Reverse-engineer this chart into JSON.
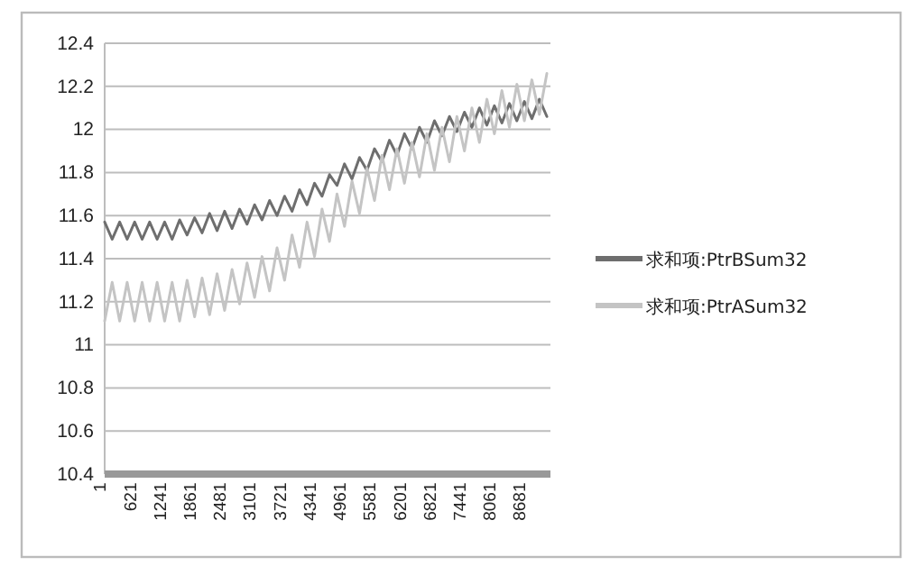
{
  "chart_data": {
    "type": "line",
    "x": [
      1,
      156,
      311,
      466,
      621,
      776,
      931,
      1086,
      1241,
      1396,
      1551,
      1706,
      1861,
      2016,
      2171,
      2326,
      2481,
      2636,
      2791,
      2946,
      3101,
      3256,
      3411,
      3566,
      3721,
      3876,
      4031,
      4186,
      4341,
      4496,
      4651,
      4806,
      4961,
      5116,
      5271,
      5426,
      5581,
      5736,
      5891,
      6046,
      6201,
      6356,
      6511,
      6666,
      6821,
      6976,
      7131,
      7286,
      7441,
      7596,
      7751,
      7906,
      8061,
      8216,
      8371,
      8526,
      8681,
      8836,
      8991,
      9146
    ],
    "series": [
      {
        "name": "求和项:PtrBSum32",
        "color": "#6e6e6e",
        "values": [
          11.57,
          11.49,
          11.57,
          11.49,
          11.57,
          11.49,
          11.57,
          11.49,
          11.57,
          11.49,
          11.58,
          11.51,
          11.59,
          11.52,
          11.61,
          11.53,
          11.62,
          11.54,
          11.63,
          11.56,
          11.65,
          11.58,
          11.67,
          11.6,
          11.69,
          11.62,
          11.72,
          11.65,
          11.75,
          11.69,
          11.79,
          11.74,
          11.84,
          11.77,
          11.87,
          11.81,
          11.91,
          11.85,
          11.95,
          11.88,
          11.98,
          11.91,
          12.01,
          11.94,
          12.04,
          11.97,
          12.06,
          11.99,
          12.08,
          12.01,
          12.1,
          12.02,
          12.11,
          12.03,
          12.12,
          12.04,
          12.13,
          12.05,
          12.14,
          12.06
        ]
      },
      {
        "name": "求和项:PtrASum32",
        "color": "#c4c4c4",
        "values": [
          11.11,
          11.29,
          11.11,
          11.29,
          11.11,
          11.29,
          11.11,
          11.29,
          11.11,
          11.29,
          11.11,
          11.3,
          11.13,
          11.31,
          11.14,
          11.33,
          11.16,
          11.35,
          11.19,
          11.38,
          11.22,
          11.41,
          11.25,
          11.45,
          11.3,
          11.51,
          11.36,
          11.57,
          11.41,
          11.63,
          11.48,
          11.7,
          11.55,
          11.76,
          11.61,
          11.82,
          11.67,
          11.88,
          11.72,
          11.91,
          11.75,
          11.94,
          11.78,
          11.98,
          11.81,
          12.01,
          11.85,
          12.06,
          11.9,
          12.1,
          11.94,
          12.14,
          11.98,
          12.18,
          12.01,
          12.21,
          12.04,
          12.23,
          12.07,
          12.26
        ]
      }
    ],
    "xlim": [
      1,
      9220
    ],
    "xticks": [
      1,
      621,
      1241,
      1861,
      2481,
      3101,
      3721,
      4341,
      4961,
      5581,
      6201,
      6821,
      7441,
      8061,
      8681
    ],
    "ylim": [
      10.4,
      12.4
    ],
    "yticks": [
      10.4,
      10.6,
      10.8,
      11,
      11.2,
      11.4,
      11.6,
      11.8,
      12,
      12.2,
      12.4
    ],
    "grid": "y",
    "legend": "right",
    "marker": "none",
    "line_style": "solid"
  }
}
